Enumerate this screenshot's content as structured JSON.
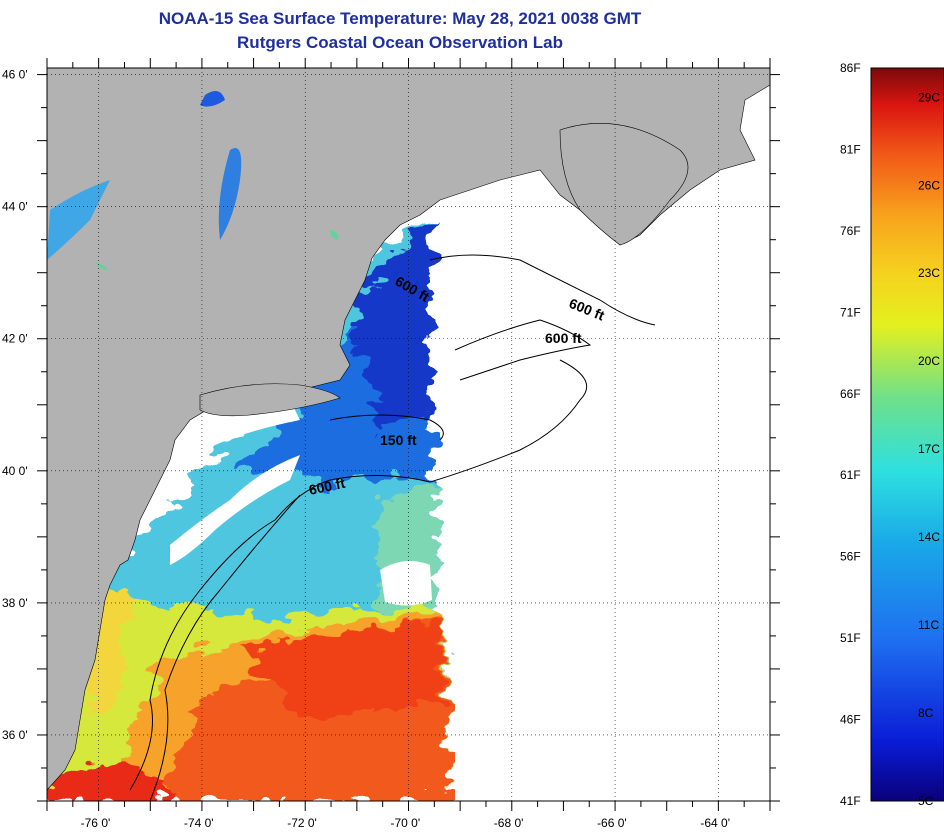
{
  "header": {
    "title": "NOAA-15 Sea Surface Temperature:  May 28, 2021 0038 GMT",
    "subtitle": "Rutgers Coastal Ocean Observation Lab"
  },
  "map": {
    "lat_labels": [
      "46 0'",
      "44 0'",
      "42 0'",
      "40 0'",
      "38 0'",
      "36 0'"
    ],
    "lat_values": [
      46,
      44,
      42,
      40,
      38,
      36
    ],
    "lon_labels": [
      "-76 0'",
      "-74 0'",
      "-72 0'",
      "-70 0'",
      "-68 0'",
      "-66 0'",
      "-64 0'"
    ],
    "lon_values": [
      -76,
      -74,
      -72,
      -70,
      -68,
      -66,
      -64
    ],
    "lat_range": [
      35,
      46.1
    ],
    "lon_range": [
      -77,
      -63
    ],
    "contour_labels": [
      "600 ft",
      "600 ft",
      "600 ft",
      "150 ft",
      "600 ft"
    ],
    "colors": {
      "land": "#b2b2b2",
      "water_nodata": "#ffffff"
    }
  },
  "colorbar": {
    "f_labels": [
      "86F",
      "81F",
      "76F",
      "71F",
      "66F",
      "61F",
      "56F",
      "51F",
      "46F",
      "41F"
    ],
    "f_values": [
      86,
      81,
      76,
      71,
      66,
      61,
      56,
      51,
      46,
      41
    ],
    "c_labels": [
      "29C",
      "26C",
      "23C",
      "20C",
      "17C",
      "14C",
      "11C",
      "8C",
      "5C"
    ],
    "c_values": [
      29,
      26,
      23,
      20,
      17,
      14,
      11,
      8,
      5
    ]
  }
}
